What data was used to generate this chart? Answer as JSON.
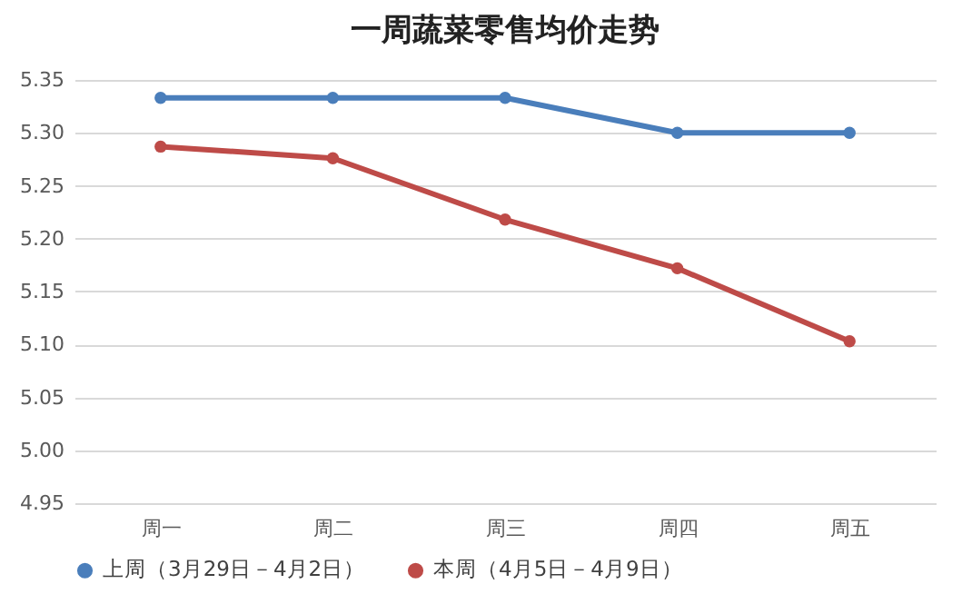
{
  "chart_data": {
    "type": "line",
    "title": "一周蔬菜零售均价走势",
    "categories": [
      "周一",
      "周二",
      "周三",
      "周四",
      "周五"
    ],
    "series": [
      {
        "name": "上周（3月29日－4月2日）",
        "color": "#4a7ebb",
        "values": [
          5.333,
          5.333,
          5.333,
          5.3,
          5.3
        ]
      },
      {
        "name": "本周（4月5日－4月9日）",
        "color": "#be4b48",
        "values": [
          5.287,
          5.276,
          5.218,
          5.172,
          5.103
        ]
      }
    ],
    "ylim": [
      4.95,
      5.35
    ],
    "yticks": [
      {
        "value": 4.95,
        "label": "4.95"
      },
      {
        "value": 5.0,
        "label": "5.00"
      },
      {
        "value": 5.05,
        "label": "5.05"
      },
      {
        "value": 5.1,
        "label": "5.10"
      },
      {
        "value": 5.15,
        "label": "5.15"
      },
      {
        "value": 5.2,
        "label": "5.20"
      },
      {
        "value": 5.25,
        "label": "5.25"
      },
      {
        "value": 5.3,
        "label": "5.30"
      },
      {
        "value": 5.35,
        "label": "5.35"
      }
    ],
    "grid": "y",
    "legend": "bottom",
    "marker": "circle",
    "line_style": "solid"
  }
}
